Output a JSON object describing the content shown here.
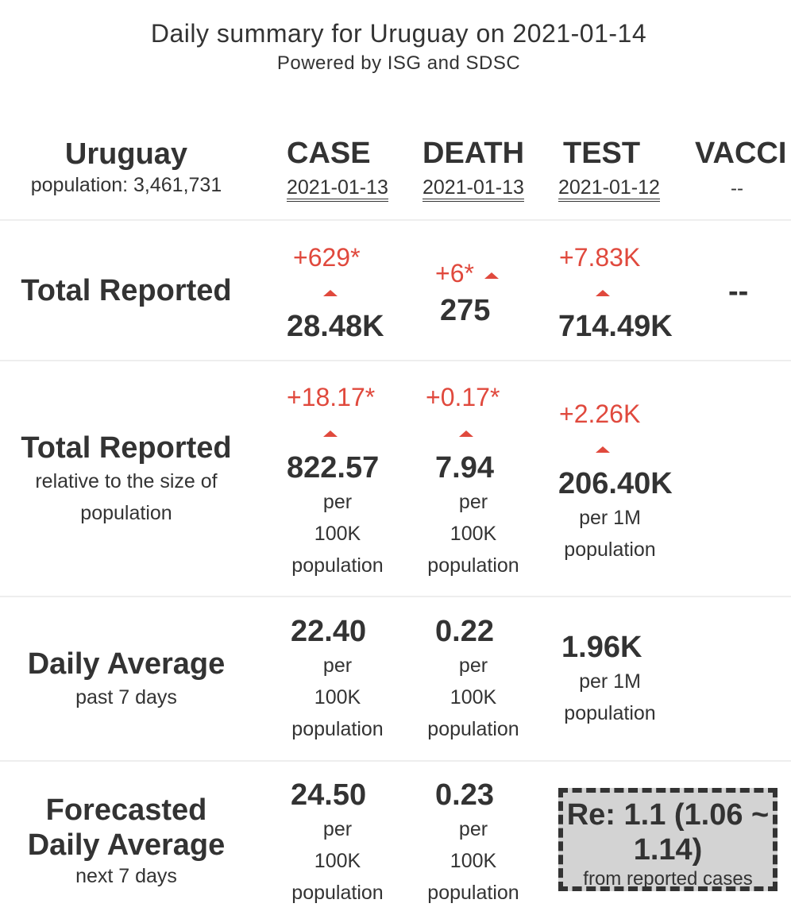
{
  "header": {
    "title": "Daily summary for Uruguay on 2021-01-14",
    "subtitle": "Powered by ISG and SDSC"
  },
  "country": {
    "name": "Uruguay",
    "population_label": "population: 3,461,731"
  },
  "columns": {
    "case": {
      "label": "CASE",
      "date": "2021-01-13"
    },
    "death": {
      "label": "DEATH",
      "date": "2021-01-13"
    },
    "test": {
      "label": "TEST",
      "date": "2021-01-12"
    },
    "vaccine": {
      "label": "VACCI",
      "date": "--"
    }
  },
  "rows": {
    "total": {
      "label": "Total Reported",
      "case": {
        "delta": "+629*",
        "value": "28.48K"
      },
      "death": {
        "delta": "+6*",
        "value": "275"
      },
      "test": {
        "delta": "+7.83K",
        "value": "714.49K"
      },
      "vaccine": {
        "value": "--"
      }
    },
    "relative": {
      "label": "Total Reported",
      "sub1": "relative to the size of",
      "sub2": "population",
      "case": {
        "delta": "+18.17*",
        "value": "822.57",
        "unit1": "per",
        "unit2": "100K",
        "unit3": "population"
      },
      "death": {
        "delta": "+0.17*",
        "value": "7.94",
        "unit1": "per",
        "unit2": "100K",
        "unit3": "population"
      },
      "test": {
        "delta": "+2.26K",
        "value": "206.40K",
        "unit1": "per 1M",
        "unit2": "population"
      }
    },
    "daily": {
      "label": "Daily Average",
      "sub": "past 7 days",
      "case": {
        "value": "22.40",
        "unit1": "per",
        "unit2": "100K",
        "unit3": "population"
      },
      "death": {
        "value": "0.22",
        "unit1": "per",
        "unit2": "100K",
        "unit3": "population"
      },
      "test": {
        "value": "1.96K",
        "unit1": "per 1M",
        "unit2": "population"
      }
    },
    "forecast": {
      "label1": "Forecasted",
      "label2": "Daily Average",
      "sub": "next 7 days",
      "case": {
        "value": "24.50",
        "unit1": "per",
        "unit2": "100K",
        "unit3": "population"
      },
      "death": {
        "value": "0.23",
        "unit1": "per",
        "unit2": "100K",
        "unit3": "population"
      },
      "re": {
        "line1": "Re: 1.1 (1.06 ~",
        "line2": "1.14)",
        "sub": "from reported cases"
      }
    }
  },
  "colors": {
    "accent_red": "#e0493d",
    "text": "#333333",
    "re_box_bg": "#d3d3d3"
  }
}
